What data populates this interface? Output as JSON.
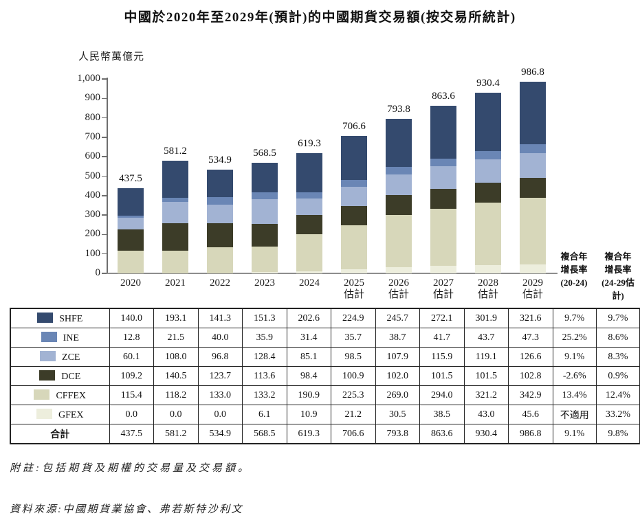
{
  "title": "中國於2020年至2029年(預計)的中國期貨交易額(按交易所統計)",
  "unit_label": "人民幣萬億元",
  "chart_data": {
    "type": "bar",
    "stacked": true,
    "title": "中國於2020年至2029年(預計)的中國期貨交易額(按交易所統計)",
    "ylabel": "人民幣萬億元",
    "xlabel": "",
    "ylim": [
      0,
      1000
    ],
    "ytick_step": 100,
    "yticks": [
      "0",
      "100",
      "200",
      "300",
      "400",
      "500",
      "600",
      "700",
      "800",
      "900",
      "1,000"
    ],
    "grid": false,
    "legend_position": "table-left-column",
    "categories": [
      "2020",
      "2021",
      "2022",
      "2023",
      "2024",
      "2025",
      "2026",
      "2027",
      "2028",
      "2029"
    ],
    "estimate_label": "估計",
    "estimate_from_index": 5,
    "totals": [
      437.5,
      581.2,
      534.9,
      568.5,
      619.3,
      706.6,
      793.8,
      863.6,
      930.4,
      986.8
    ],
    "stack_order_bottom_to_top": [
      "GFEX",
      "CFFEX",
      "DCE",
      "ZCE",
      "INE",
      "SHFE"
    ],
    "series": [
      {
        "name": "SHFE",
        "color": "#344a6e",
        "values": [
          140.0,
          193.1,
          141.3,
          151.3,
          202.6,
          224.9,
          245.7,
          272.1,
          301.9,
          321.6
        ],
        "cagr_20_24": "9.7%",
        "cagr_24_29": "9.7%"
      },
      {
        "name": "INE",
        "color": "#6a86b5",
        "values": [
          12.8,
          21.5,
          40.0,
          35.9,
          31.4,
          35.7,
          38.7,
          41.7,
          43.7,
          47.3
        ],
        "cagr_20_24": "25.2%",
        "cagr_24_29": "8.6%"
      },
      {
        "name": "ZCE",
        "color": "#a2b3d3",
        "values": [
          60.1,
          108.0,
          96.8,
          128.4,
          85.1,
          98.5,
          107.9,
          115.9,
          119.1,
          126.6
        ],
        "cagr_20_24": "9.1%",
        "cagr_24_29": "8.3%"
      },
      {
        "name": "DCE",
        "color": "#3c3c28",
        "values": [
          109.2,
          140.5,
          123.7,
          113.6,
          98.4,
          100.9,
          102.0,
          101.5,
          101.5,
          102.8
        ],
        "cagr_20_24": "-2.6%",
        "cagr_24_29": "0.9%"
      },
      {
        "name": "CFFEX",
        "color": "#d7d7ba",
        "values": [
          115.4,
          118.2,
          133.0,
          133.2,
          190.9,
          225.3,
          269.0,
          294.0,
          321.2,
          342.9
        ],
        "cagr_20_24": "13.4%",
        "cagr_24_29": "12.4%"
      },
      {
        "name": "GFEX",
        "color": "#edeedd",
        "values": [
          0.0,
          0.0,
          0.0,
          6.1,
          10.9,
          21.2,
          30.5,
          38.5,
          43.0,
          45.6
        ],
        "cagr_20_24": "不適用",
        "cagr_24_29": "33.2%"
      }
    ]
  },
  "cagr_headers": [
    {
      "lines": [
        "複合年",
        "增長率",
        "(20-24)"
      ]
    },
    {
      "lines": [
        "複合年",
        "增長率",
        "(24-29估計)"
      ]
    }
  ],
  "table_total_row": {
    "label": "合計",
    "values": [
      "437.5",
      "581.2",
      "534.9",
      "568.5",
      "619.3",
      "706.6",
      "793.8",
      "863.6",
      "930.4",
      "986.8"
    ],
    "cagr_20_24": "9.1%",
    "cagr_24_29": "9.8%"
  },
  "colors": {
    "exchange_name_text": "#1f3864",
    "axis": "#6e6e6e",
    "table_border": "#222222"
  },
  "notes": {
    "note": "附註:包括期貨及期權的交易量及交易額。",
    "source": "資料來源:中國期貨業協會、弗若斯特沙利文"
  }
}
